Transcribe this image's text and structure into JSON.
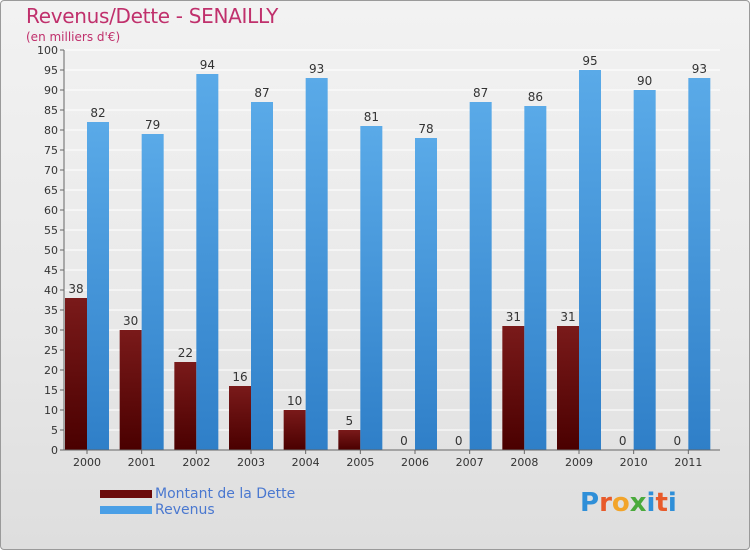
{
  "header": {
    "title": "Revenus/Dette - SENAILLY",
    "subtitle": "(en milliers d'€)"
  },
  "legend": {
    "items": [
      {
        "label": "Montant de la Dette",
        "color": "#6b0a0a"
      },
      {
        "label": "Revenus",
        "color": "#4a9fe6"
      }
    ]
  },
  "logo": {
    "text": "Proxiti"
  },
  "colors": {
    "dette_top": "#7a1a1a",
    "dette_bottom": "#4a0000",
    "revenus_top": "#5aaae8",
    "revenus_bottom": "#2f7fc8"
  },
  "chart_data": {
    "type": "bar",
    "categories": [
      "2000",
      "2001",
      "2002",
      "2003",
      "2004",
      "2005",
      "2006",
      "2007",
      "2008",
      "2009",
      "2010",
      "2011"
    ],
    "series": [
      {
        "name": "Montant de la Dette",
        "values": [
          38,
          30,
          22,
          16,
          10,
          5,
          0,
          0,
          31,
          31,
          0,
          0
        ]
      },
      {
        "name": "Revenus",
        "values": [
          82,
          79,
          94,
          87,
          93,
          81,
          78,
          87,
          86,
          95,
          90,
          93
        ]
      }
    ],
    "ylim": [
      0,
      100
    ],
    "yticks": [
      0,
      5,
      10,
      15,
      20,
      25,
      30,
      35,
      40,
      45,
      50,
      55,
      60,
      65,
      70,
      75,
      80,
      85,
      90,
      95,
      100
    ],
    "grid": true,
    "legend_position": "bottom-left"
  }
}
